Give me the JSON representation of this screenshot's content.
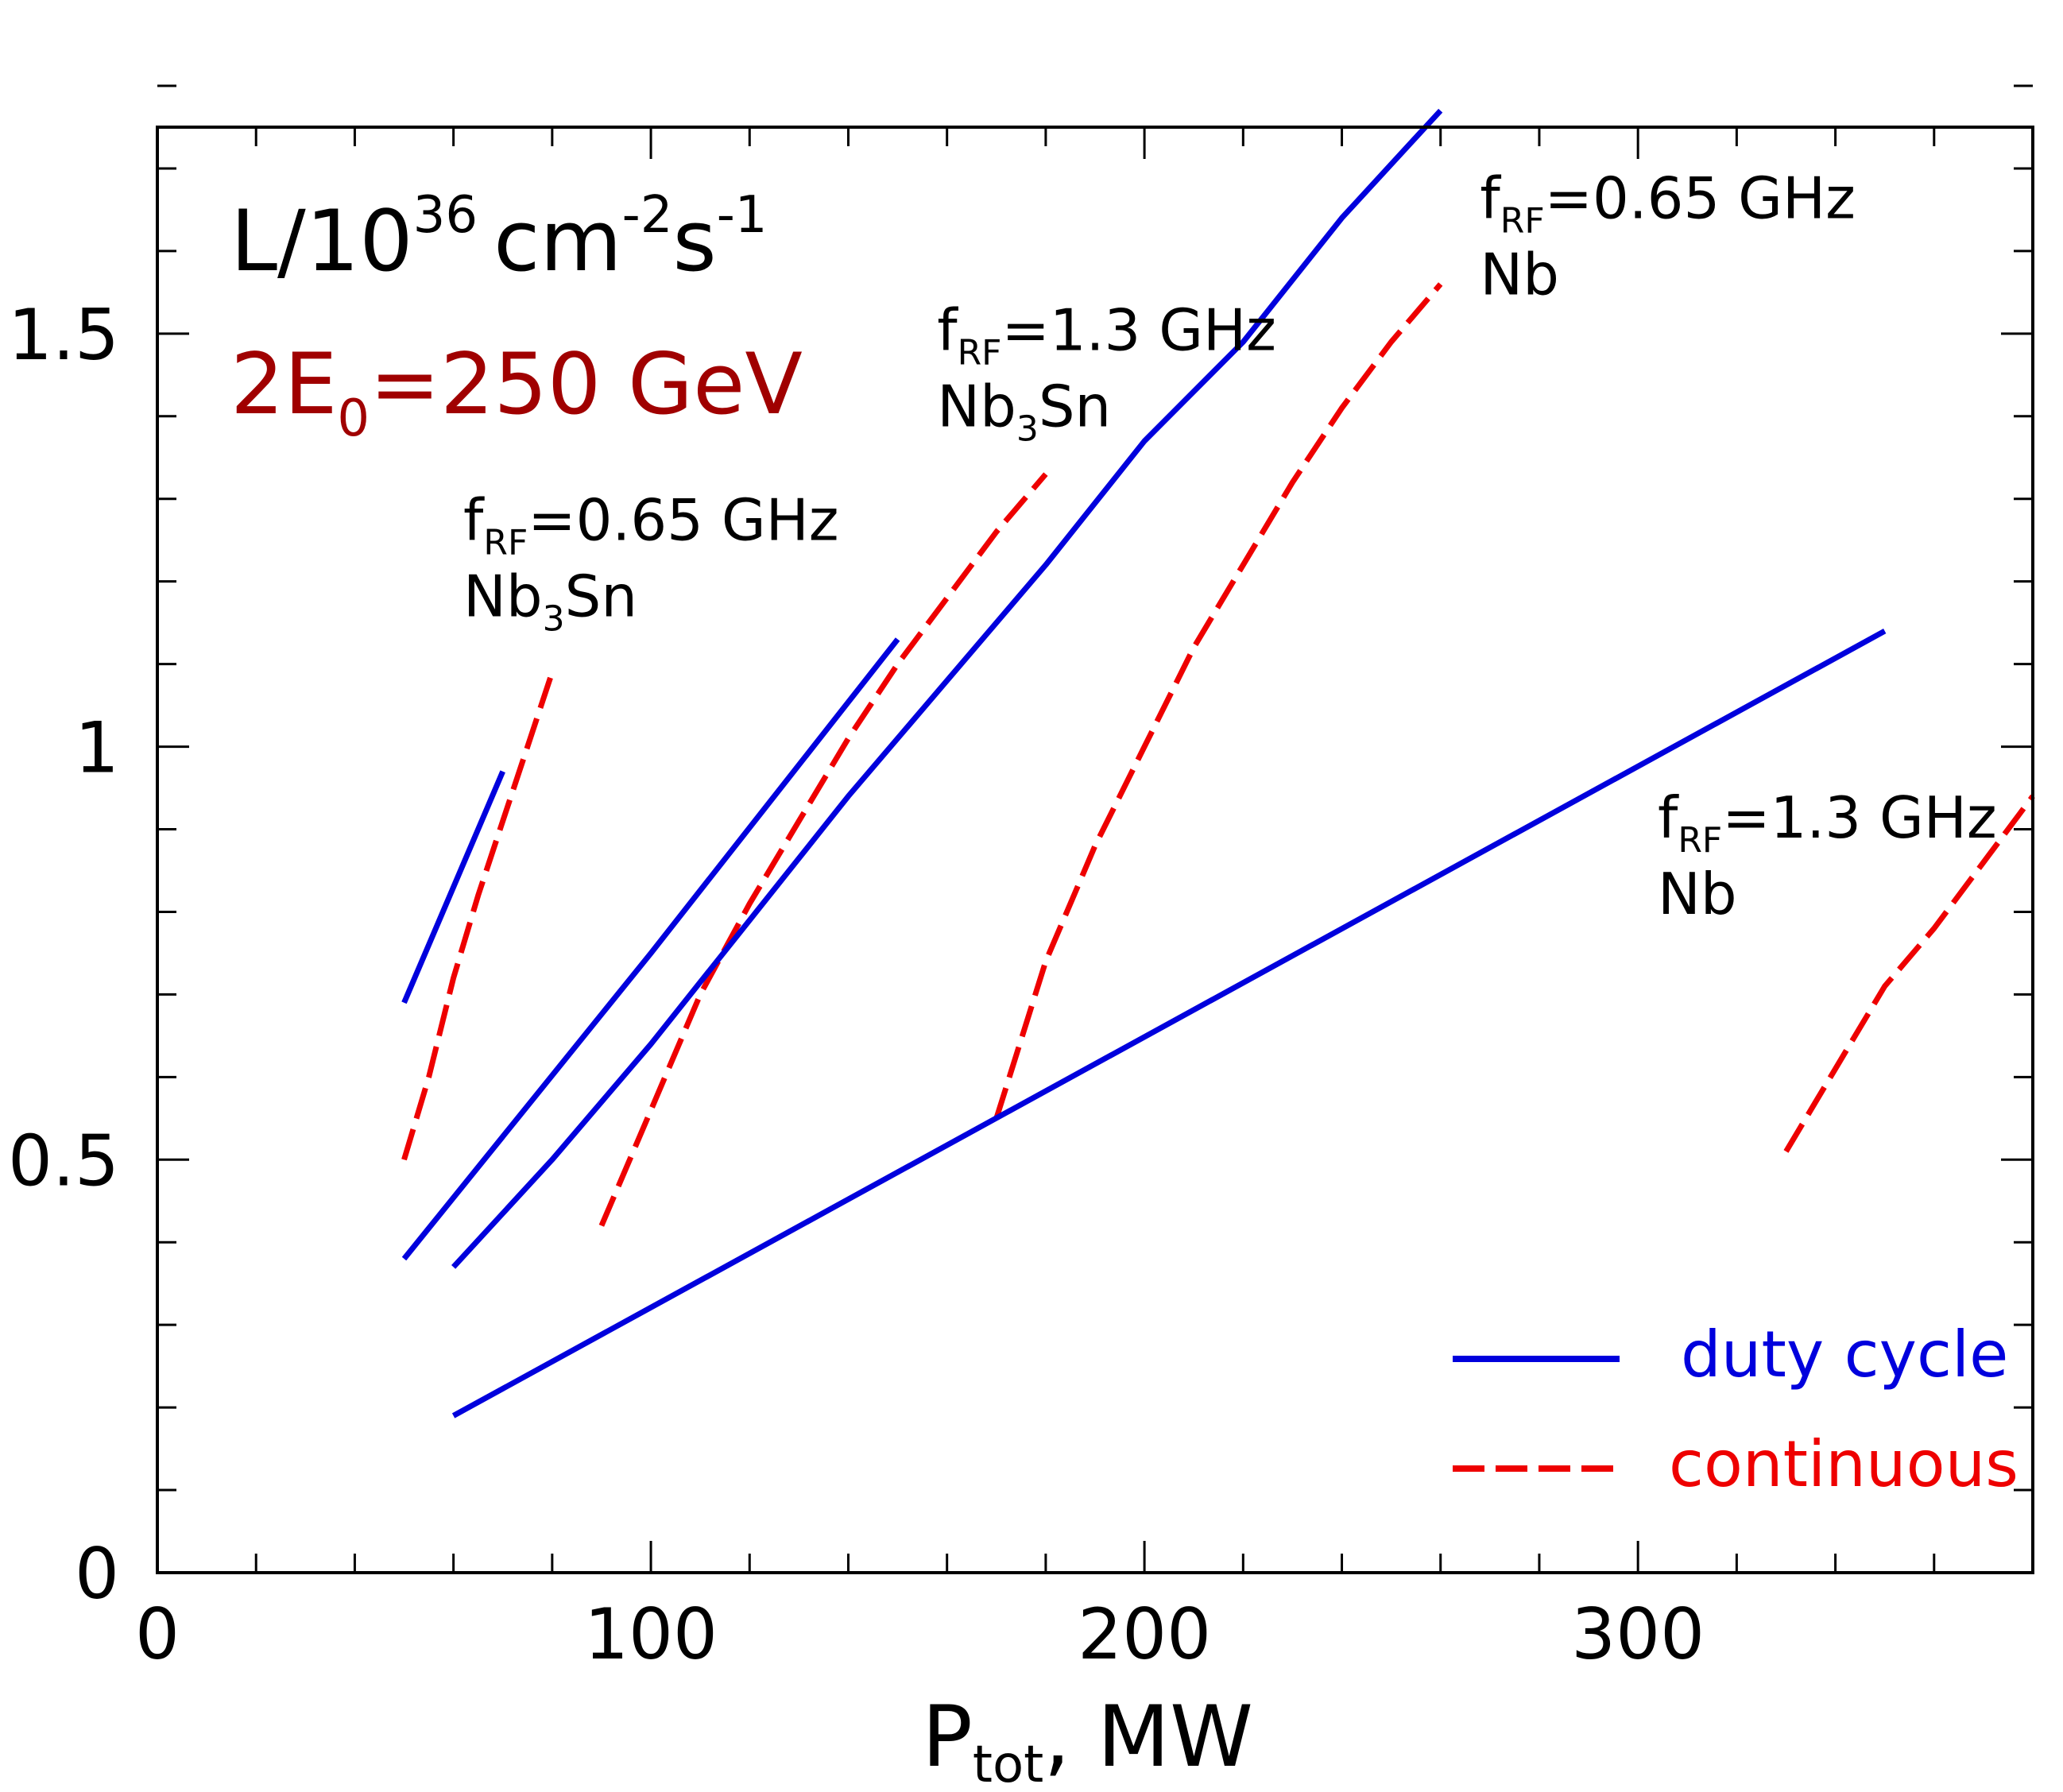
{
  "chart_data": {
    "type": "line",
    "title": "L/10^36 cm^-2 s^-1",
    "ylabel_parts": {
      "base": "L/10",
      "exp": "36",
      "unit1": "cm",
      "exp2": "-2",
      "unit2": "s",
      "exp3": "-1"
    },
    "energy_label": {
      "prefix": "2E",
      "sub": "0",
      "suffix": "=250 GeV"
    },
    "xlabel": {
      "base": "P",
      "sub": "tot",
      "suffix": ", MW"
    },
    "xlim": [
      0,
      380
    ],
    "ylim": [
      0,
      1.75
    ],
    "xticks": [
      {
        "value": 0,
        "label": "0"
      },
      {
        "value": 100,
        "label": "100"
      },
      {
        "value": 200,
        "label": "200"
      },
      {
        "value": 300,
        "label": "300"
      }
    ],
    "yticks": [
      {
        "value": 0,
        "label": "0"
      },
      {
        "value": 0.5,
        "label": "0.5"
      },
      {
        "value": 1,
        "label": "1"
      },
      {
        "value": 1.5,
        "label": "1.5"
      }
    ],
    "x_minor_step": 20,
    "y_minor_step": 0.1,
    "grid": false,
    "colors": {
      "duty": "#0000dd",
      "continuous": "#ee0000",
      "energy": "#a00000",
      "text": "#000000"
    },
    "legend": {
      "position": "bottom-right",
      "entries": [
        {
          "label": "duty cycle",
          "style": "solid",
          "color": "#0000dd"
        },
        {
          "label": "continuous",
          "style": "dashed",
          "color": "#ee0000"
        }
      ]
    },
    "series": [
      {
        "name": "duty cycle, fRF=0.65 GHz, Nb3Sn",
        "style": "solid",
        "color": "#0000dd",
        "x": [
          50,
          70
        ],
        "y": [
          0.69,
          0.97
        ]
      },
      {
        "name": "continuous, fRF=0.65 GHz, Nb3Sn",
        "style": "dashed",
        "color": "#ee0000",
        "x": [
          50,
          55,
          60,
          65,
          70,
          75,
          80
        ],
        "y": [
          0.5,
          0.6,
          0.72,
          0.82,
          0.91,
          1.0,
          1.09
        ]
      },
      {
        "name": "duty cycle, fRF=1.3 GHz, Nb3Sn",
        "style": "solid",
        "color": "#0000dd",
        "x": [
          50,
          100,
          150
        ],
        "y": [
          0.38,
          0.75,
          1.13
        ]
      },
      {
        "name": "continuous, fRF=1.3 GHz, Nb3Sn",
        "style": "dashed",
        "color": "#ee0000",
        "x": [
          90,
          100,
          110,
          120,
          130,
          140,
          150,
          160,
          170,
          180
        ],
        "y": [
          0.42,
          0.56,
          0.7,
          0.81,
          0.91,
          1.01,
          1.1,
          1.18,
          1.26,
          1.33
        ]
      },
      {
        "name": "duty cycle, fRF=0.65 GHz, Nb",
        "style": "solid",
        "color": "#0000dd",
        "x": [
          60,
          80,
          100,
          120,
          140,
          160,
          180,
          200,
          220,
          240,
          260
        ],
        "y": [
          0.37,
          0.5,
          0.64,
          0.79,
          0.94,
          1.08,
          1.22,
          1.37,
          1.49,
          1.64,
          1.77
        ]
      },
      {
        "name": "continuous, fRF=0.65 GHz, Nb",
        "style": "dashed",
        "color": "#ee0000",
        "x": [
          170,
          180,
          190,
          200,
          210,
          220,
          230,
          240,
          250,
          260
        ],
        "y": [
          0.55,
          0.74,
          0.88,
          1.0,
          1.12,
          1.22,
          1.32,
          1.41,
          1.49,
          1.56
        ]
      },
      {
        "name": "duty cycle, fRF=1.3 GHz, Nb",
        "style": "solid",
        "color": "#0000dd",
        "x": [
          60,
          350
        ],
        "y": [
          0.19,
          1.14
        ]
      },
      {
        "name": "continuous, fRF=1.3 GHz, Nb",
        "style": "dashed",
        "color": "#ee0000",
        "x": [
          330,
          340,
          350,
          360,
          370,
          380
        ],
        "y": [
          0.51,
          0.61,
          0.71,
          0.78,
          0.86,
          0.94
        ]
      }
    ],
    "annotations": [
      {
        "f": "f",
        "sub": "RF",
        "freq": "=0.65 GHz",
        "material_base": "Nb",
        "material_sub": "3",
        "material_tail": "Sn",
        "x": 62,
        "y": 1.25
      },
      {
        "f": "f",
        "sub": "RF",
        "freq": "=1.3 GHz",
        "material_base": "Nb",
        "material_sub": "3",
        "material_tail": "Sn",
        "x": 158,
        "y": 1.48
      },
      {
        "f": "f",
        "sub": "RF",
        "freq": "=0.65 GHz",
        "material_base": "Nb",
        "material_sub": "",
        "material_tail": "",
        "x": 268,
        "y": 1.64
      },
      {
        "f": "f",
        "sub": "RF",
        "freq": "=1.3 GHz",
        "material_base": "Nb",
        "material_sub": "",
        "material_tail": "",
        "x": 304,
        "y": 0.89
      }
    ]
  }
}
